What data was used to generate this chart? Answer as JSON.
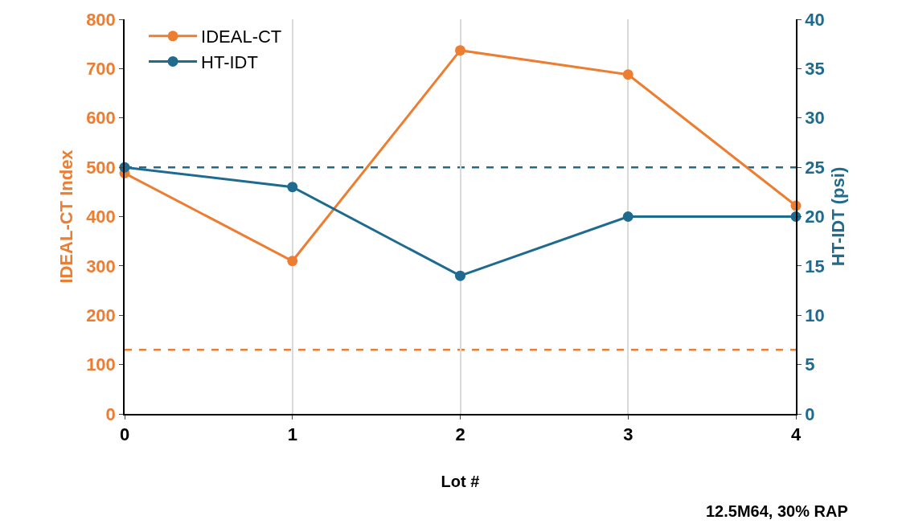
{
  "chart_data": {
    "type": "line",
    "xlabel": "Lot #",
    "ylabel": "IDEAL-CT Index",
    "y2label": "HT-IDT (psi)",
    "x": [
      0,
      1,
      2,
      3,
      4
    ],
    "series": [
      {
        "name": "IDEAL-CT",
        "color": "#ed7d31",
        "values": [
          488,
          310,
          737,
          688,
          422
        ]
      },
      {
        "name": "HT-IDT",
        "color": "#1f6b8f",
        "values": [
          25,
          23,
          14,
          20,
          20
        ],
        "axis": "y2"
      }
    ],
    "xlim": [
      0,
      4
    ],
    "xticks": [
      0,
      1,
      2,
      3,
      4
    ],
    "ylim": [
      0,
      800
    ],
    "yticks": [
      0,
      100,
      200,
      300,
      400,
      500,
      600,
      700,
      800
    ],
    "y2lim": [
      0,
      40
    ],
    "y2ticks": [
      0,
      5,
      10,
      15,
      20,
      25,
      30,
      35,
      40
    ],
    "ref_lines": [
      {
        "axis": "y",
        "value": 130,
        "color": "#ed7d31",
        "line_style": "dashed"
      },
      {
        "axis": "y2",
        "value": 25,
        "color": "#1f6b8f",
        "line_style": "dashed"
      }
    ],
    "annotations": [
      "12.5M64, 30% RAP"
    ],
    "grid": "x",
    "legend": "top left",
    "marker": "circle",
    "line_style": "solid"
  }
}
